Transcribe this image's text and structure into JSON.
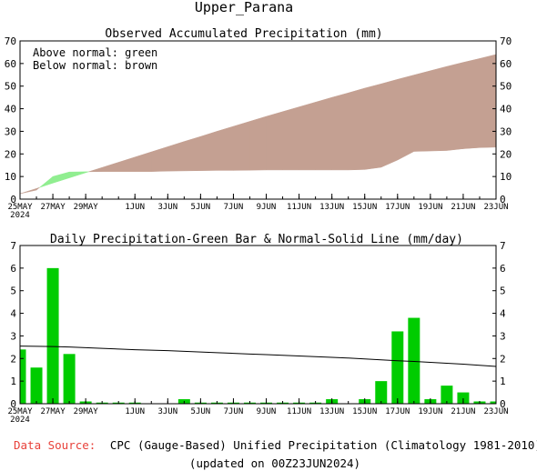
{
  "page": {
    "title": "Upper_Parana",
    "source_label": "Data Source:",
    "source_text": "CPC (Gauge-Based) Unified Precipitation (Climatology 1981-2010)",
    "updated_text": "(updated on 00Z23JUN2024)",
    "colors": {
      "source_label": "#e8413a",
      "above_normal_fill": "#90ee90",
      "below_normal_fill": "#c4a092",
      "bar_fill": "#00cc00",
      "normal_line": "#000000"
    }
  },
  "chart_data": [
    {
      "type": "area",
      "title": "Observed Accumulated Precipitation (mm)",
      "legend_lines": [
        "Above normal: green",
        "Below normal: brown"
      ],
      "legend_position": "top-left",
      "ylim": [
        0,
        70
      ],
      "yticks": [
        0,
        10,
        20,
        30,
        40,
        50,
        60,
        70
      ],
      "y_axis_both_sides": true,
      "x_tick_labels": [
        {
          "day": 0,
          "label": "25MAY",
          "sub": "2024"
        },
        {
          "day": 2,
          "label": "27MAY"
        },
        {
          "day": 4,
          "label": "29MAY"
        },
        {
          "day": 7,
          "label": "1JUN"
        },
        {
          "day": 9,
          "label": "3JUN"
        },
        {
          "day": 11,
          "label": "5JUN"
        },
        {
          "day": 13,
          "label": "7JUN"
        },
        {
          "day": 15,
          "label": "9JUN"
        },
        {
          "day": 17,
          "label": "11JUN"
        },
        {
          "day": 19,
          "label": "13JUN"
        },
        {
          "day": 21,
          "label": "15JUN"
        },
        {
          "day": 23,
          "label": "17JUN"
        },
        {
          "day": 25,
          "label": "19JUN"
        },
        {
          "day": 27,
          "label": "21JUN"
        },
        {
          "day": 29,
          "label": "23JUN"
        }
      ],
      "x_range": [
        0,
        29
      ],
      "series": [
        {
          "name": "Observed accumulated",
          "values": [
            2.4,
            4.0,
            10.0,
            12.0,
            12.1,
            12.2,
            12.2,
            12.2,
            12.2,
            12.4,
            12.5,
            12.6,
            12.7,
            12.7,
            12.8,
            12.9,
            12.9,
            12.9,
            12.9,
            12.9,
            12.9,
            13.1,
            14.1,
            17.3,
            21.1,
            21.3,
            21.5,
            22.3,
            22.8,
            23.0
          ]
        },
        {
          "name": "Normal accumulated",
          "values": [
            2.4,
            4.7,
            7.1,
            9.4,
            11.7,
            14.0,
            16.3,
            18.6,
            20.9,
            23.2,
            25.5,
            27.7,
            30.0,
            32.2,
            34.4,
            36.6,
            38.7,
            40.8,
            42.9,
            45.0,
            47.0,
            49.1,
            51.0,
            53.0,
            54.9,
            56.8,
            58.7,
            60.5,
            62.2,
            64.0
          ]
        }
      ]
    },
    {
      "type": "bar",
      "title": "Daily Precipitation-Green Bar & Normal-Solid Line (mm/day)",
      "ylim": [
        0,
        7
      ],
      "yticks": [
        0,
        1,
        2,
        3,
        4,
        5,
        6,
        7
      ],
      "y_axis_both_sides": true,
      "x_tick_labels": [
        {
          "day": 0,
          "label": "25MAY",
          "sub": "2024"
        },
        {
          "day": 2,
          "label": "27MAY"
        },
        {
          "day": 4,
          "label": "29MAY"
        },
        {
          "day": 7,
          "label": "1JUN"
        },
        {
          "day": 9,
          "label": "3JUN"
        },
        {
          "day": 11,
          "label": "5JUN"
        },
        {
          "day": 13,
          "label": "7JUN"
        },
        {
          "day": 15,
          "label": "9JUN"
        },
        {
          "day": 17,
          "label": "11JUN"
        },
        {
          "day": 19,
          "label": "13JUN"
        },
        {
          "day": 21,
          "label": "15JUN"
        },
        {
          "day": 23,
          "label": "17JUN"
        },
        {
          "day": 25,
          "label": "19JUN"
        },
        {
          "day": 27,
          "label": "21JUN"
        },
        {
          "day": 29,
          "label": "23JUN"
        }
      ],
      "x_range": [
        0,
        29
      ],
      "series": [
        {
          "name": "Daily precipitation",
          "values": [
            2.4,
            1.6,
            6.0,
            2.2,
            0.1,
            0.05,
            0.05,
            0.05,
            0.02,
            0.02,
            0.2,
            0.05,
            0.05,
            0.05,
            0.05,
            0.05,
            0.05,
            0.05,
            0.05,
            0.2,
            0.02,
            0.2,
            1.0,
            3.2,
            3.8,
            0.2,
            0.8,
            0.5,
            0.1,
            0.1
          ]
        },
        {
          "name": "Daily normal",
          "values": [
            2.55,
            2.54,
            2.53,
            2.51,
            2.48,
            2.45,
            2.42,
            2.39,
            2.37,
            2.35,
            2.32,
            2.29,
            2.26,
            2.23,
            2.2,
            2.17,
            2.14,
            2.11,
            2.08,
            2.05,
            2.02,
            1.98,
            1.94,
            1.9,
            1.87,
            1.83,
            1.79,
            1.75,
            1.7,
            1.65
          ]
        }
      ]
    }
  ]
}
